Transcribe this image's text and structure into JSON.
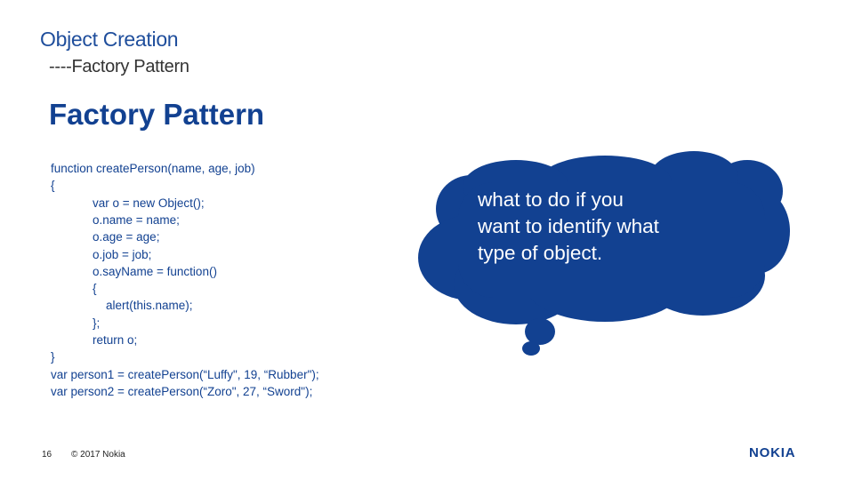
{
  "slide": {
    "title": "Object Creation",
    "subtitle": "----Factory Pattern",
    "heading": "Factory Pattern",
    "code_lines": [
      {
        "text": "function createPerson(name, age, job)",
        "indent": 0
      },
      {
        "text": "{",
        "indent": 0
      },
      {
        "text": "var o = new Object();",
        "indent": 1
      },
      {
        "text": "o.name = name;",
        "indent": 1
      },
      {
        "text": "o.age = age;",
        "indent": 1
      },
      {
        "text": "o.job = job;",
        "indent": 1
      },
      {
        "text": "o.sayName = function()",
        "indent": 1
      },
      {
        "text": "{",
        "indent": 1
      },
      {
        "text": "alert(this.name);",
        "indent": 2
      },
      {
        "text": "};",
        "indent": 1
      },
      {
        "text": "return o;",
        "indent": 1
      },
      {
        "text": "}",
        "indent": 0
      },
      {
        "text": "var person1 = createPerson(“Luffy\", 19, “Rubber\");",
        "indent": 0
      },
      {
        "text": "var person2 = createPerson(“Zoro\", 27, “Sword\");",
        "indent": 0
      }
    ],
    "bubble": {
      "lines": [
        "what to do if you",
        "want to identify what",
        "type of object."
      ],
      "color": "#124191"
    }
  },
  "footer": {
    "page_number": "16",
    "copyright": "© 2017 Nokia",
    "logo": "NOKIA"
  }
}
